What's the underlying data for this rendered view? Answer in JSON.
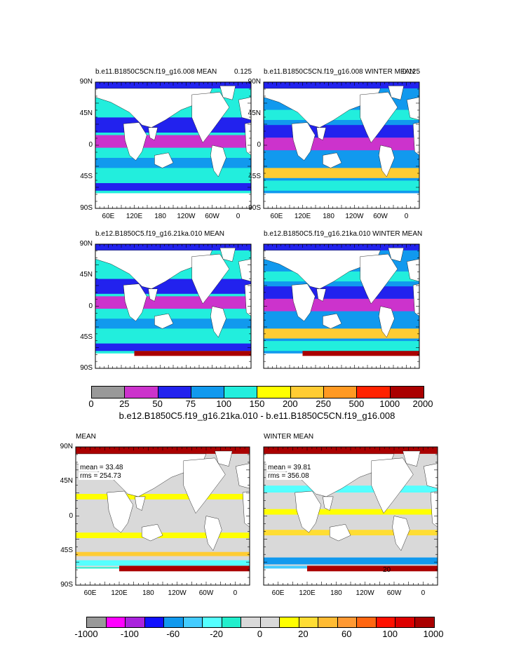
{
  "panels": [
    {
      "title": "b.e11.B1850C5CN.f19_g16.008 MEAN",
      "right_label": "0.125",
      "kind": "abs",
      "lat_labels": [
        "90N",
        "45N",
        "0",
        "45S",
        "90S"
      ],
      "lon_labels": [
        "60E",
        "120E",
        "180",
        "120W",
        "60W",
        "0"
      ]
    },
    {
      "title": "b.e11.B1850C5CN.f19_g16.008 WINTER MEAN",
      "right_label": "0.125",
      "kind": "abs_winter",
      "lat_labels": [
        "90N",
        "45N",
        "0",
        "45S",
        "90S"
      ],
      "lon_labels": [
        "60E",
        "120E",
        "180",
        "120W",
        "60W",
        "0"
      ]
    },
    {
      "title": "b.e12.B1850C5.f19_g16.21ka.010 MEAN",
      "right_label": "",
      "kind": "abs",
      "lat_labels": [
        "90N",
        "45N",
        "0",
        "45S",
        "90S"
      ],
      "lon_labels": []
    },
    {
      "title": "b.e12.B1850C5.f19_g16.21ka.010 WINTER MEAN",
      "right_label": "",
      "kind": "abs_winter",
      "lat_labels": [],
      "lon_labels": []
    },
    {
      "title": "MEAN",
      "right_label": "",
      "kind": "diff",
      "stats_mean": "mean = 33.48",
      "stats_rms": "rms = 254.73",
      "lat_labels": [
        "90N",
        "45N",
        "0",
        "45S",
        "90S"
      ],
      "lon_labels": [
        "60E",
        "120E",
        "180",
        "120W",
        "60W",
        "0"
      ]
    },
    {
      "title": "WINTER MEAN",
      "right_label": "",
      "kind": "diff_winter",
      "stats_mean": "mean = 39.81",
      "stats_rms": "rms = 356.08",
      "contour_label": "20",
      "lat_labels": [],
      "lon_labels": [
        "60E",
        "120E",
        "180",
        "120W",
        "60W",
        "0"
      ]
    }
  ],
  "colorbar_top": {
    "colors": [
      "#999999",
      "#cc33cc",
      "#2222ee",
      "#1199ee",
      "#22eedd",
      "#ffff00",
      "#ffcc33",
      "#ff9922",
      "#ff2200",
      "#aa0000"
    ],
    "labels": [
      "0",
      "25",
      "50",
      "75",
      "100",
      "150",
      "200",
      "250",
      "500",
      "1000",
      "2000"
    ],
    "caption": "b.e12.B1850C5.f19_g16.21ka.010 - b.e11.B1850C5CN.f19_g16.008"
  },
  "colorbar_bottom": {
    "colors": [
      "#999999",
      "#ff00ff",
      "#aa22dd",
      "#1111ff",
      "#1199ee",
      "#44ccff",
      "#55ffff",
      "#22eecc",
      "#d9d9d9",
      "#d9d9d9",
      "#ffff00",
      "#ffdd33",
      "#ffbb33",
      "#ff9933",
      "#ff6611",
      "#ff1100",
      "#dd0000",
      "#aa0000"
    ],
    "labels": [
      "-1000",
      "-100",
      "-60",
      "-20",
      "0",
      "20",
      "60",
      "100",
      "1000"
    ]
  },
  "legend_colors": {
    "land": "#ffffff",
    "frame": "#000000"
  }
}
